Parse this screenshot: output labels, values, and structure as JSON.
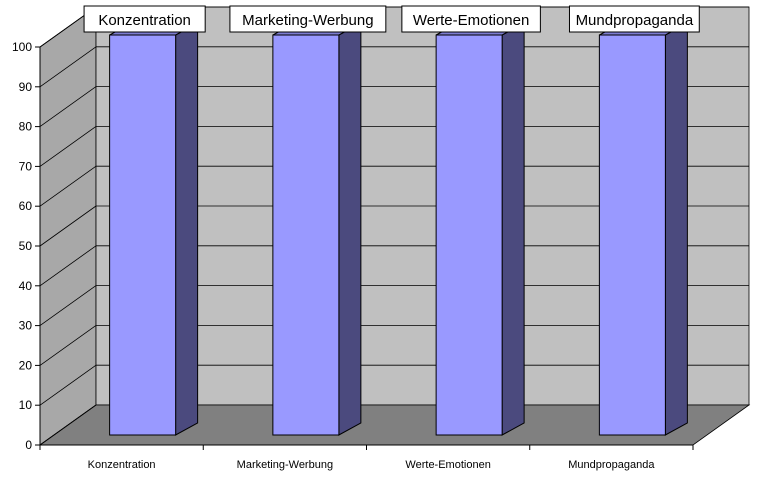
{
  "chart_data": {
    "type": "bar",
    "style": "3d-column",
    "categories": [
      "Konzentration",
      "Marketing-Werbung",
      "Werte-Emotionen",
      "Mundpropaganda"
    ],
    "values": [
      100,
      100,
      100,
      100
    ],
    "data_labels": [
      "Konzentration",
      "Marketing-Werbung",
      "Werte-Emotionen",
      "Mundpropaganda"
    ],
    "title": "",
    "xlabel": "",
    "ylabel": "",
    "ylim": [
      0,
      100
    ],
    "yticks": [
      0,
      10,
      20,
      30,
      40,
      50,
      60,
      70,
      80,
      90,
      100
    ],
    "grid": true,
    "legend": "none",
    "colors": {
      "bar_front": "#9999ff",
      "bar_side": "#4b4a7e",
      "bar_top": "#7c7cd0",
      "wall_back": "#c0c0c0",
      "wall_side": "#a8a8a8",
      "floor": "#808080",
      "gridline": "#000000"
    }
  }
}
